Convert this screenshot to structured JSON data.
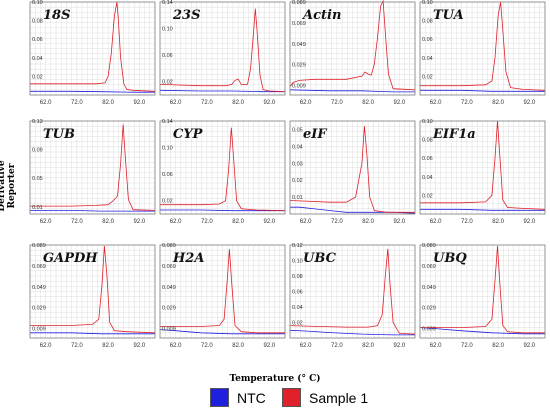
{
  "figure": {
    "xlabel": "Temperature (° C)",
    "ylabel": "Derivative Reporter",
    "legend": [
      {
        "name": "NTC",
        "color": "#1f1fe0"
      },
      {
        "name": "Sample 1",
        "color": "#e0202a"
      }
    ]
  },
  "chart_data": [
    {
      "type": "line",
      "title": "18S",
      "xlim": [
        57,
        97
      ],
      "ylim": [
        0,
        0.1
      ],
      "x_ticks": [
        62,
        72,
        82,
        92
      ],
      "x_tick_labels": [
        "62.0",
        "72.0",
        "82.0",
        "92.0"
      ],
      "y_ticks": [
        0.02,
        0.04,
        0.06,
        0.08,
        0.1
      ],
      "y_tick_labels": [
        "0.02",
        "0.04",
        "0.06",
        "0.08",
        "0.10"
      ],
      "series": [
        {
          "name": "Sample 1",
          "color": "#e0202a",
          "x": [
            57,
            70,
            78,
            81,
            82,
            83,
            84,
            84.8,
            85.3,
            86,
            87,
            88,
            90,
            97
          ],
          "y": [
            0.012,
            0.012,
            0.012,
            0.013,
            0.02,
            0.045,
            0.085,
            0.1,
            0.08,
            0.04,
            0.012,
            0.006,
            0.005,
            0.004
          ]
        },
        {
          "name": "NTC",
          "color": "#1f1fe0",
          "x": [
            57,
            70,
            80,
            90,
            97
          ],
          "y": [
            0.004,
            0.004,
            0.0035,
            0.003,
            0.003
          ]
        }
      ]
    },
    {
      "type": "line",
      "title": "23S",
      "xlim": [
        57,
        97
      ],
      "ylim": [
        0,
        0.14
      ],
      "x_ticks": [
        62,
        72,
        82,
        92
      ],
      "x_tick_labels": [
        "62.0",
        "72.0",
        "82.0",
        "92.0"
      ],
      "y_ticks": [
        0.02,
        0.06,
        0.1,
        0.14
      ],
      "y_tick_labels": [
        "0.02",
        "0.06",
        "0.10",
        "0.14"
      ],
      "series": [
        {
          "name": "Sample 1",
          "color": "#e0202a",
          "x": [
            57,
            70,
            78,
            80,
            81,
            82,
            83,
            85,
            86,
            87,
            87.5,
            88,
            89,
            90,
            92,
            97
          ],
          "y": [
            0.016,
            0.014,
            0.014,
            0.016,
            0.022,
            0.024,
            0.016,
            0.016,
            0.04,
            0.1,
            0.13,
            0.1,
            0.03,
            0.008,
            0.006,
            0.005
          ]
        },
        {
          "name": "NTC",
          "color": "#1f1fe0",
          "x": [
            57,
            70,
            80,
            90,
            97
          ],
          "y": [
            0.007,
            0.006,
            0.006,
            0.005,
            0.005
          ]
        }
      ]
    },
    {
      "type": "line",
      "title": "Actin",
      "xlim": [
        57,
        97
      ],
      "ylim": [
        0,
        0.089
      ],
      "x_ticks": [
        62,
        72,
        82,
        92
      ],
      "x_tick_labels": [
        "62.0",
        "72.0",
        "82.0",
        "92.0"
      ],
      "y_ticks": [
        0.009,
        0.029,
        0.049,
        0.069,
        0.089
      ],
      "y_tick_labels": [
        "0.009",
        "0.029",
        "0.049",
        "0.069",
        "0.089"
      ],
      "series": [
        {
          "name": "Sample 1",
          "color": "#e0202a",
          "x": [
            57,
            58,
            60,
            65,
            75,
            80,
            81,
            82,
            83,
            84,
            85,
            86,
            86.8,
            87.5,
            88.5,
            90,
            97
          ],
          "y": [
            0.008,
            0.012,
            0.014,
            0.015,
            0.015,
            0.018,
            0.022,
            0.02,
            0.019,
            0.03,
            0.055,
            0.085,
            0.09,
            0.06,
            0.02,
            0.006,
            0.005
          ]
        },
        {
          "name": "NTC",
          "color": "#1f1fe0",
          "x": [
            57,
            70,
            80,
            90,
            97
          ],
          "y": [
            0.005,
            0.004,
            0.004,
            0.003,
            0.003
          ]
        }
      ]
    },
    {
      "type": "line",
      "title": "TUA",
      "xlim": [
        57,
        97
      ],
      "ylim": [
        0,
        0.1
      ],
      "x_ticks": [
        62,
        72,
        82,
        92
      ],
      "x_tick_labels": [
        "62.0",
        "72.0",
        "82.0",
        "92.0"
      ],
      "y_ticks": [
        0.02,
        0.04,
        0.06,
        0.08,
        0.1
      ],
      "y_tick_labels": [
        "0.02",
        "0.04",
        "0.06",
        "0.08",
        "0.10"
      ],
      "series": [
        {
          "name": "Sample 1",
          "color": "#e0202a",
          "x": [
            57,
            70,
            78,
            80,
            81,
            82,
            82.8,
            83.5,
            84.5,
            86,
            90,
            97
          ],
          "y": [
            0.01,
            0.01,
            0.011,
            0.015,
            0.04,
            0.085,
            0.1,
            0.07,
            0.025,
            0.008,
            0.006,
            0.005
          ]
        },
        {
          "name": "NTC",
          "color": "#1f1fe0",
          "x": [
            57,
            70,
            80,
            90,
            97
          ],
          "y": [
            0.005,
            0.005,
            0.004,
            0.004,
            0.004
          ]
        }
      ]
    },
    {
      "type": "line",
      "title": "TUB",
      "xlim": [
        57,
        97
      ],
      "ylim": [
        0,
        0.13
      ],
      "x_ticks": [
        62,
        72,
        82,
        92
      ],
      "x_tick_labels": [
        "62.0",
        "72.0",
        "82.0",
        "92.0"
      ],
      "y_ticks": [
        0.01,
        0.05,
        0.09,
        0.13
      ],
      "y_tick_labels": [
        "0.01",
        "0.05",
        "0.09",
        "0.13"
      ],
      "series": [
        {
          "name": "Sample 1",
          "color": "#e0202a",
          "x": [
            57,
            70,
            78,
            82,
            83.5,
            85,
            86,
            86.8,
            87.5,
            88.5,
            90,
            97
          ],
          "y": [
            0.011,
            0.011,
            0.012,
            0.013,
            0.018,
            0.025,
            0.07,
            0.125,
            0.08,
            0.02,
            0.006,
            0.005
          ]
        },
        {
          "name": "NTC",
          "color": "#1f1fe0",
          "x": [
            57,
            70,
            80,
            90,
            97
          ],
          "y": [
            0.005,
            0.005,
            0.004,
            0.004,
            0.004
          ]
        }
      ]
    },
    {
      "type": "line",
      "title": "CYP",
      "xlim": [
        57,
        97
      ],
      "ylim": [
        0,
        0.14
      ],
      "x_ticks": [
        62,
        72,
        82,
        92
      ],
      "x_tick_labels": [
        "62.0",
        "72.0",
        "82.0",
        "92.0"
      ],
      "y_ticks": [
        0.02,
        0.06,
        0.1,
        0.14
      ],
      "y_tick_labels": [
        "0.02",
        "0.06",
        "0.10",
        "0.14"
      ],
      "series": [
        {
          "name": "Sample 1",
          "color": "#e0202a",
          "x": [
            57,
            70,
            76,
            78,
            79,
            79.8,
            80.6,
            81.5,
            83,
            88,
            97
          ],
          "y": [
            0.014,
            0.014,
            0.015,
            0.02,
            0.07,
            0.13,
            0.08,
            0.02,
            0.008,
            0.006,
            0.005
          ]
        },
        {
          "name": "NTC",
          "color": "#1f1fe0",
          "x": [
            57,
            70,
            80,
            90,
            97
          ],
          "y": [
            0.006,
            0.006,
            0.005,
            0.005,
            0.005
          ]
        }
      ]
    },
    {
      "type": "line",
      "title": "eIF",
      "xlim": [
        57,
        97
      ],
      "ylim": [
        0,
        0.055
      ],
      "x_ticks": [
        62,
        72,
        82,
        92
      ],
      "x_tick_labels": [
        "62.0",
        "72.0",
        "82.0",
        "92.0"
      ],
      "y_ticks": [
        0.01,
        0.02,
        0.03,
        0.04,
        0.05
      ],
      "y_tick_labels": [
        "0.01",
        "0.02",
        "0.03",
        "0.04",
        "0.05"
      ],
      "series": [
        {
          "name": "Sample 1",
          "color": "#e0202a",
          "x": [
            57,
            70,
            75,
            78,
            80,
            80.8,
            81.6,
            82.5,
            84,
            88,
            97
          ],
          "y": [
            0.008,
            0.007,
            0.007,
            0.01,
            0.03,
            0.052,
            0.035,
            0.01,
            0.002,
            0.001,
            0.001
          ]
        },
        {
          "name": "NTC",
          "color": "#1f1fe0",
          "x": [
            57,
            60,
            65,
            70,
            75,
            80,
            90,
            97
          ],
          "y": [
            0.004,
            0.004,
            0.003,
            0.002,
            0.001,
            0.001,
            0.001,
            0.0005
          ]
        }
      ]
    },
    {
      "type": "line",
      "title": "EIF1a",
      "xlim": [
        57,
        97
      ],
      "ylim": [
        0,
        0.1
      ],
      "x_ticks": [
        62,
        72,
        82,
        92
      ],
      "x_tick_labels": [
        "62.0",
        "72.0",
        "82.0",
        "92.0"
      ],
      "y_ticks": [
        0.02,
        0.04,
        0.06,
        0.08,
        0.1
      ],
      "y_tick_labels": [
        "0.02",
        "0.04",
        "0.06",
        "0.08",
        "0.10"
      ],
      "series": [
        {
          "name": "Sample 1",
          "color": "#e0202a",
          "x": [
            57,
            70,
            78,
            80,
            81,
            81.8,
            82.6,
            83.5,
            85,
            90,
            97
          ],
          "y": [
            0.012,
            0.012,
            0.013,
            0.02,
            0.06,
            0.1,
            0.06,
            0.015,
            0.007,
            0.006,
            0.005
          ]
        },
        {
          "name": "NTC",
          "color": "#1f1fe0",
          "x": [
            57,
            70,
            80,
            90,
            97
          ],
          "y": [
            0.005,
            0.005,
            0.004,
            0.004,
            0.004
          ]
        }
      ]
    },
    {
      "type": "line",
      "title": "GAPDH",
      "xlim": [
        57,
        97
      ],
      "ylim": [
        0,
        0.089
      ],
      "x_ticks": [
        62,
        72,
        82,
        92
      ],
      "x_tick_labels": [
        "62.0",
        "72.0",
        "82.0",
        "92.0"
      ],
      "y_ticks": [
        0.009,
        0.029,
        0.049,
        0.069,
        0.089
      ],
      "y_tick_labels": [
        "0.009",
        "0.029",
        "0.049",
        "0.069",
        "0.089"
      ],
      "series": [
        {
          "name": "Sample 1",
          "color": "#e0202a",
          "x": [
            57,
            70,
            77,
            79,
            80,
            80.8,
            81.6,
            82.5,
            84,
            88,
            97
          ],
          "y": [
            0.012,
            0.012,
            0.013,
            0.018,
            0.05,
            0.088,
            0.06,
            0.015,
            0.007,
            0.006,
            0.005
          ]
        },
        {
          "name": "NTC",
          "color": "#1f1fe0",
          "x": [
            57,
            70,
            80,
            90,
            97
          ],
          "y": [
            0.005,
            0.005,
            0.004,
            0.004,
            0.004
          ]
        }
      ]
    },
    {
      "type": "line",
      "title": "H2A",
      "xlim": [
        57,
        97
      ],
      "ylim": [
        0,
        0.089
      ],
      "x_ticks": [
        62,
        72,
        82,
        92
      ],
      "x_tick_labels": [
        "62.0",
        "72.0",
        "82.0",
        "92.0"
      ],
      "y_ticks": [
        0.009,
        0.029,
        0.049,
        0.069,
        0.089
      ],
      "y_tick_labels": [
        "0.009",
        "0.029",
        "0.049",
        "0.069",
        "0.089"
      ],
      "series": [
        {
          "name": "Sample 1",
          "color": "#e0202a",
          "x": [
            57,
            70,
            76,
            77.5,
            78.5,
            79.2,
            80,
            81,
            83,
            88,
            97
          ],
          "y": [
            0.011,
            0.011,
            0.012,
            0.018,
            0.055,
            0.085,
            0.05,
            0.012,
            0.006,
            0.005,
            0.005
          ]
        },
        {
          "name": "NTC",
          "color": "#1f1fe0",
          "x": [
            57,
            62,
            70,
            80,
            90,
            97
          ],
          "y": [
            0.008,
            0.007,
            0.005,
            0.004,
            0.004,
            0.004
          ]
        }
      ]
    },
    {
      "type": "line",
      "title": "UBC",
      "xlim": [
        57,
        97
      ],
      "ylim": [
        0,
        0.12
      ],
      "x_ticks": [
        62,
        72,
        82,
        92
      ],
      "x_tick_labels": [
        "62.0",
        "72.0",
        "82.0",
        "92.0"
      ],
      "y_ticks": [
        0.02,
        0.04,
        0.06,
        0.08,
        0.1,
        0.12
      ],
      "y_tick_labels": [
        "0.02",
        "0.04",
        "0.06",
        "0.08",
        "0.10",
        "0.12"
      ],
      "series": [
        {
          "name": "Sample 1",
          "color": "#e0202a",
          "x": [
            57,
            65,
            75,
            82,
            85,
            86.5,
            87.5,
            88.3,
            89,
            90,
            92,
            97
          ],
          "y": [
            0.016,
            0.015,
            0.014,
            0.014,
            0.016,
            0.03,
            0.08,
            0.115,
            0.07,
            0.02,
            0.006,
            0.005
          ]
        },
        {
          "name": "NTC",
          "color": "#1f1fe0",
          "x": [
            57,
            62,
            70,
            80,
            90,
            97
          ],
          "y": [
            0.01,
            0.009,
            0.007,
            0.005,
            0.004,
            0.004
          ]
        }
      ]
    },
    {
      "type": "line",
      "title": "UBQ",
      "xlim": [
        57,
        97
      ],
      "ylim": [
        0,
        0.089
      ],
      "x_ticks": [
        62,
        72,
        82,
        92
      ],
      "x_tick_labels": [
        "62.0",
        "72.0",
        "82.0",
        "92.0"
      ],
      "y_ticks": [
        0.009,
        0.029,
        0.049,
        0.069,
        0.089
      ],
      "y_tick_labels": [
        "0.009",
        "0.029",
        "0.049",
        "0.069",
        "0.089"
      ],
      "series": [
        {
          "name": "Sample 1",
          "color": "#e0202a",
          "x": [
            57,
            70,
            78,
            80,
            81,
            81.8,
            82.6,
            83.5,
            85,
            90,
            97
          ],
          "y": [
            0.01,
            0.01,
            0.011,
            0.018,
            0.055,
            0.088,
            0.05,
            0.012,
            0.006,
            0.005,
            0.005
          ]
        },
        {
          "name": "NTC",
          "color": "#1f1fe0",
          "x": [
            57,
            62,
            70,
            80,
            90,
            97
          ],
          "y": [
            0.01,
            0.009,
            0.007,
            0.005,
            0.004,
            0.004
          ]
        }
      ]
    }
  ]
}
